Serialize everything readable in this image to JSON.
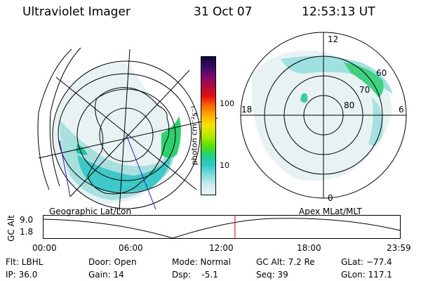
{
  "header": {
    "title": "Ultraviolet Imager",
    "date": "31 Oct 07",
    "time": "12:53:13 UT"
  },
  "colorbar": {
    "unit_label": "photon cm⁻²s⁻¹",
    "ticks": [
      "100",
      "10"
    ],
    "colors": [
      "#0a0a3a",
      "#3a0a60",
      "#7a0a70",
      "#b00a40",
      "#e01010",
      "#ff6a00",
      "#ffb000",
      "#f2e400",
      "#b8e800",
      "#5ce000",
      "#20d080",
      "#30c8c8",
      "#80dcdc",
      "#c8ecec",
      "#eef4f4"
    ]
  },
  "left_panel": {
    "caption": "Geographic Lat/Lon"
  },
  "right_panel": {
    "caption": "Apex MLat/MLT",
    "labels": {
      "top": "12",
      "left": "18",
      "right": "6",
      "bottom": "0",
      "r60": "60",
      "r70": "70",
      "r80": "80"
    }
  },
  "altitude_plot": {
    "ylabel": "GC Alt",
    "y_ticks": [
      "9.0",
      "1.8"
    ],
    "x_ticks": [
      "00:00",
      "06:00",
      "12:00",
      "18:00",
      "23:59"
    ],
    "current_time_fraction": 0.537,
    "marker_color": "#c00000"
  },
  "status": {
    "filter": "Flt: LBHL",
    "ip": "IP: 36.0",
    "door": "Door: Open",
    "gain": "Gain: 14",
    "mode": "Mode: Normal",
    "dsp": "Dsp:    -5.1",
    "gc_alt": "GC Alt: 7.2 Re",
    "seq": "Seq: 39",
    "glat": "GLat: −77.4",
    "glon": "GLon: 117.1"
  }
}
